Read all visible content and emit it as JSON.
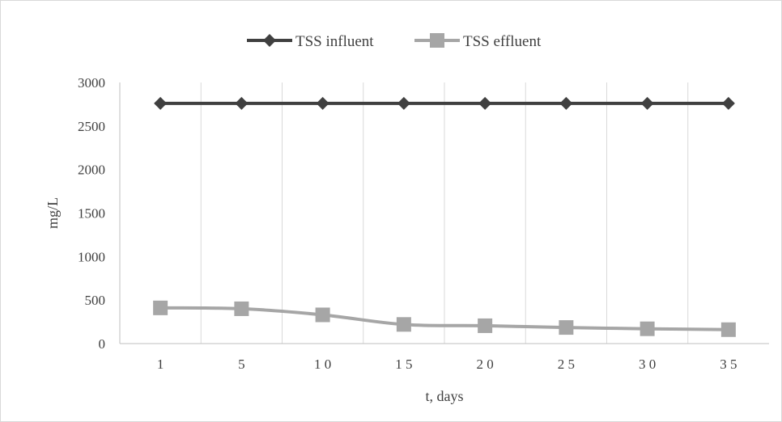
{
  "chart_data": {
    "type": "line",
    "categories": [
      "1",
      "5",
      "1 0",
      "1 5",
      "2 0",
      "2 5",
      "3 0",
      "3 5"
    ],
    "series": [
      {
        "name": "TSS influent",
        "values": [
          2760,
          2760,
          2760,
          2760,
          2760,
          2760,
          2760,
          2760
        ],
        "color": "#404040",
        "marker": "diamond"
      },
      {
        "name": "TSS effluent",
        "values": [
          410,
          400,
          330,
          220,
          205,
          185,
          170,
          160
        ],
        "color": "#a6a6a6",
        "marker": "square"
      }
    ],
    "xlabel": "t, days",
    "ylabel": "mg/L",
    "ylim": [
      0,
      3000
    ],
    "yticks": [
      0,
      500,
      1000,
      1500,
      2000,
      2500,
      3000
    ],
    "ytick_labels": [
      "0",
      "500",
      "1000",
      "1500",
      "2000",
      "2500",
      "3000"
    ],
    "grid": "vertical",
    "legend_position": "top-center"
  }
}
